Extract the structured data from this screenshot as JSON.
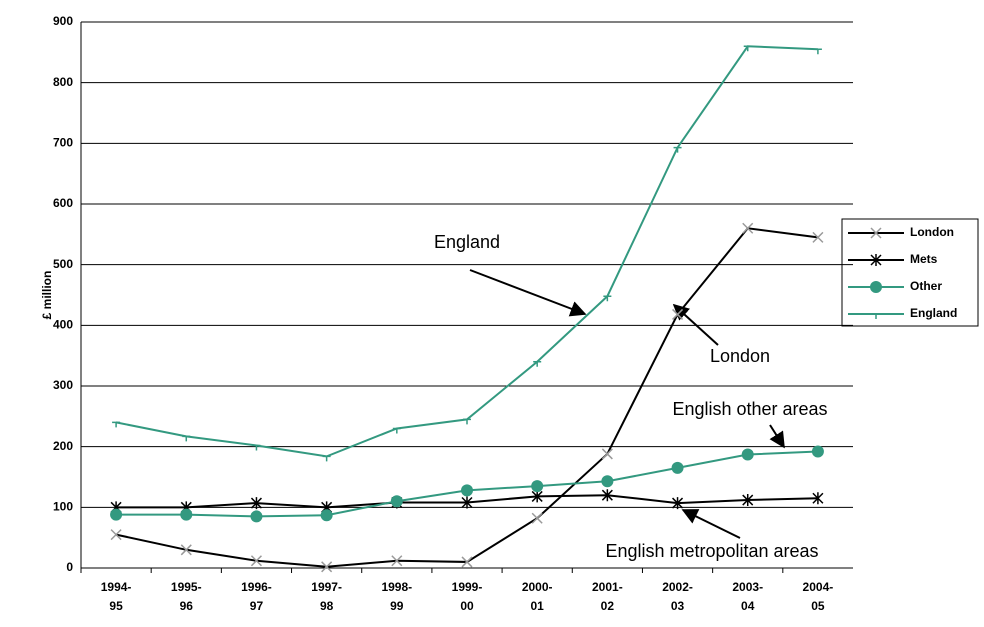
{
  "chart_data": {
    "type": "line",
    "y_label": "£ million",
    "categories": [
      "1994-95",
      "1995-96",
      "1996-97",
      "1997-98",
      "1998-99",
      "1999-00",
      "2000-01",
      "2001-02",
      "2002-03",
      "2003-04",
      "2004-05"
    ],
    "series": [
      {
        "name": "London",
        "color": "#000000",
        "marker_color": "#999999",
        "marker": "x",
        "values": [
          55,
          30,
          12,
          2,
          12,
          10,
          82,
          188,
          418,
          560,
          545
        ]
      },
      {
        "name": "Mets",
        "color": "#000000",
        "marker_color": "#000000",
        "marker": "star",
        "values": [
          100,
          100,
          107,
          100,
          108,
          108,
          118,
          120,
          107,
          112,
          115
        ]
      },
      {
        "name": "Other",
        "color": "#339980",
        "marker_color": "#339980",
        "marker": "circle",
        "values": [
          88,
          88,
          85,
          87,
          110,
          128,
          135,
          143,
          165,
          187,
          192
        ]
      },
      {
        "name": "England",
        "color": "#339980",
        "marker_color": "#339980",
        "marker": "plus",
        "values": [
          240,
          217,
          202,
          184,
          230,
          245,
          340,
          448,
          693,
          860,
          855
        ]
      }
    ],
    "annotations": [
      "England",
      "London",
      "English other areas",
      "English metropolitan areas"
    ],
    "ylim": [
      0,
      900
    ],
    "yticks": [
      0,
      100,
      200,
      300,
      400,
      500,
      600,
      700,
      800,
      900
    ],
    "grid": true,
    "legend": "right"
  }
}
